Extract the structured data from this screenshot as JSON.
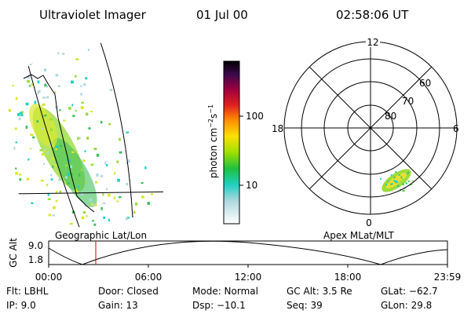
{
  "header": {
    "title": "Ultraviolet Imager",
    "date": "01 Jul 00",
    "time": "02:58:06 UT"
  },
  "colorbar": {
    "label": [
      "photon cm",
      "−2",
      "s",
      "−1"
    ],
    "ticks": [
      "100",
      "10"
    ]
  },
  "polar": {
    "hours": [
      "12",
      "18",
      "6",
      "0"
    ],
    "latitudes": [
      "60",
      "70",
      "80"
    ]
  },
  "captions": [
    "Geographic Lat/Lon",
    "Apex MLat/MLT"
  ],
  "altitude": {
    "label": "GC Alt",
    "yticks": [
      "9.0",
      "1.8"
    ],
    "xticks": [
      "00:00",
      "06:00",
      "12:00",
      "18:00",
      "23:59"
    ]
  },
  "footer": [
    [
      "Flt: LBHL",
      "IP: 9.0"
    ],
    [
      "Door: Closed",
      "Gain: 13"
    ],
    [
      "Mode: Normal",
      "Dsp: −10.1"
    ],
    [
      "GC Alt: 3.5 Re",
      "Seq: 39"
    ],
    [
      "GLat: −62.7",
      "GLon: 29.8"
    ]
  ]
}
